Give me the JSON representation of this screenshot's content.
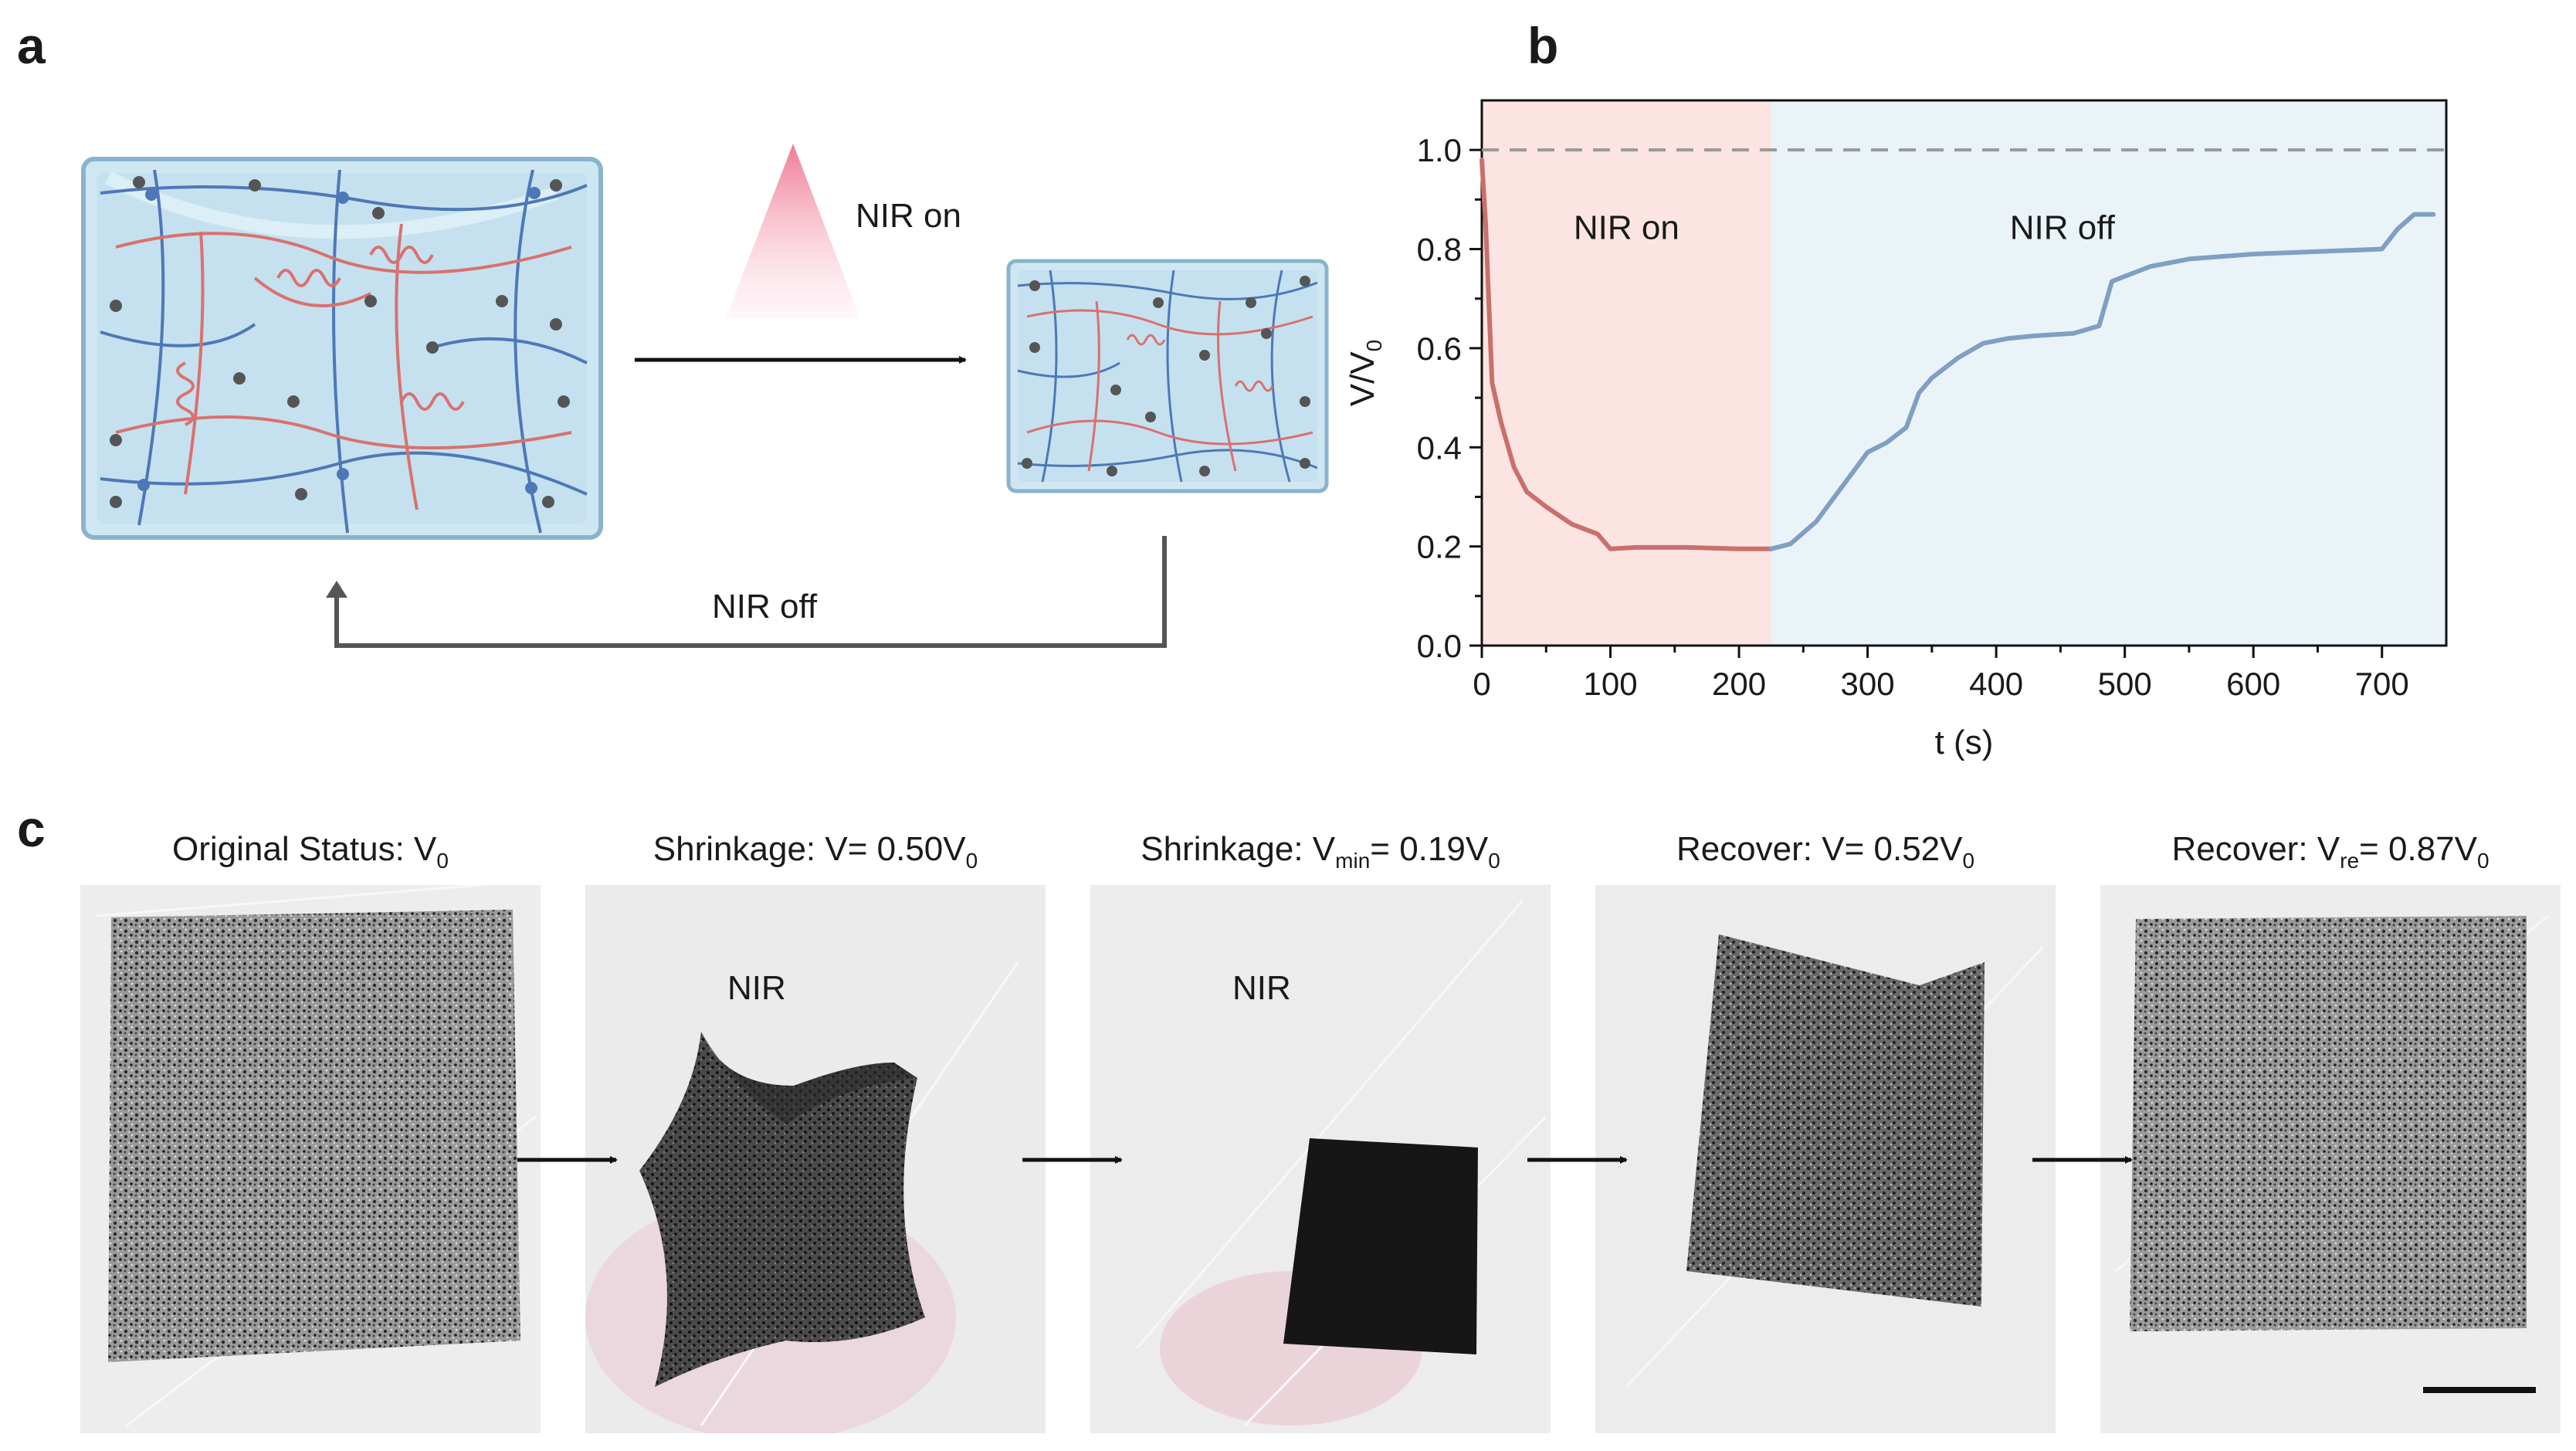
{
  "panels": {
    "a": "a",
    "b": "b",
    "c": "c"
  },
  "panel_a": {
    "nir_on_label": "NIR on",
    "nir_off_label": "NIR off",
    "colors": {
      "network_red": "#d9716e",
      "network_blue": "#4d78b8",
      "gel_fill": "#cfe7f2",
      "gel_edge": "#8ab4cc",
      "particle": "#555555",
      "cone": "#f07a96"
    }
  },
  "chart_data": {
    "type": "line",
    "title": "",
    "xlabel": "t (s)",
    "ylabel": "V/V0",
    "xlim": [
      0,
      750
    ],
    "ylim": [
      0.0,
      1.1
    ],
    "xticks": [
      0,
      100,
      200,
      300,
      400,
      500,
      600,
      700
    ],
    "yticks": [
      0.0,
      0.2,
      0.4,
      0.6,
      0.8,
      1.0
    ],
    "ytick_labels": [
      "0.0",
      "0.2",
      "0.4",
      "0.6",
      "0.8",
      "1.0"
    ],
    "reference_line": {
      "y": 1.0,
      "style": "dashed"
    },
    "regions": [
      {
        "label": "NIR on",
        "x_start": 0,
        "x_end": 225,
        "color": "#fbe4e1"
      },
      {
        "label": "NIR off",
        "x_start": 225,
        "x_end": 750,
        "color": "#eaf4f8"
      }
    ],
    "series": [
      {
        "name": "NIR on",
        "color": "#c9706d",
        "x": [
          0,
          3,
          8,
          15,
          25,
          35,
          50,
          70,
          90,
          100,
          120,
          160,
          200,
          225
        ],
        "y": [
          0.98,
          0.85,
          0.53,
          0.45,
          0.36,
          0.31,
          0.28,
          0.245,
          0.225,
          0.195,
          0.198,
          0.198,
          0.195,
          0.195
        ]
      },
      {
        "name": "NIR off",
        "color": "#7f9fc4",
        "x": [
          225,
          240,
          260,
          280,
          300,
          315,
          330,
          340,
          350,
          370,
          390,
          410,
          430,
          460,
          480,
          490,
          500,
          520,
          550,
          600,
          650,
          700,
          712,
          725,
          740
        ],
        "y": [
          0.195,
          0.205,
          0.25,
          0.32,
          0.39,
          0.41,
          0.44,
          0.51,
          0.54,
          0.58,
          0.61,
          0.62,
          0.625,
          0.63,
          0.645,
          0.735,
          0.745,
          0.765,
          0.78,
          0.79,
          0.795,
          0.8,
          0.84,
          0.87,
          0.87
        ]
      }
    ]
  },
  "panel_c": {
    "captions": [
      {
        "pre": "Original Status: V",
        "sub": "0",
        "post": ""
      },
      {
        "pre": "Shrinkage: V= 0.50V",
        "sub": "0",
        "post": ""
      },
      {
        "pre": "Shrinkage: V",
        "sub": "min",
        "post": "= 0.19V",
        "sub2": "0"
      },
      {
        "pre": "Recover: V= 0.52V",
        "sub": "0",
        "post": ""
      },
      {
        "pre": "Recover: V",
        "sub": "re",
        "post": "= 0.87V",
        "sub2": "0"
      }
    ],
    "nir_labels": [
      "NIR",
      "NIR"
    ]
  }
}
